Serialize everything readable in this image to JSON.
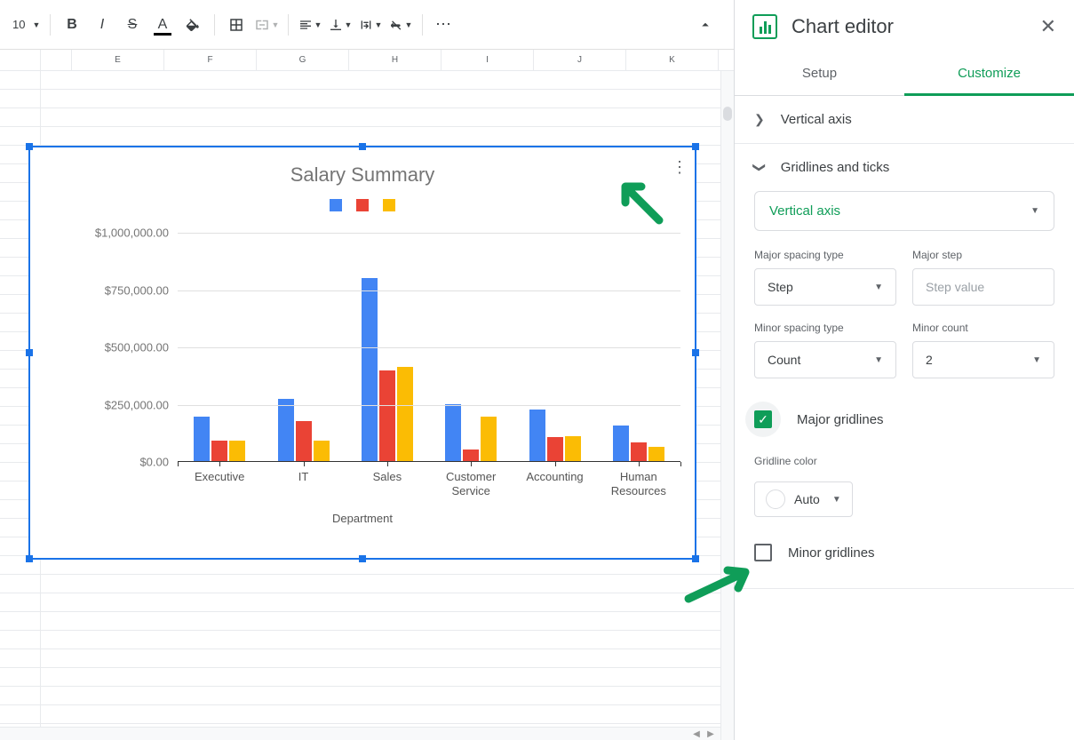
{
  "toolbar": {
    "font_size": "10",
    "buttons": {
      "bold": "B",
      "italic": "I",
      "strike": "S",
      "text_color": "A",
      "more": "⋯"
    }
  },
  "columns": [
    "E",
    "F",
    "G",
    "H",
    "I",
    "J",
    "K"
  ],
  "chart": {
    "type": "bar",
    "title": "Salary Summary",
    "series_colors": [
      "#4285f4",
      "#ea4335",
      "#fbbc04"
    ],
    "axis_label": "Department",
    "categories": [
      "Executive",
      "IT",
      "Sales",
      "Customer\nService",
      "Accounting",
      "Human\nResources"
    ],
    "values": [
      [
        195000,
        90000,
        90000
      ],
      [
        270000,
        175000,
        90000
      ],
      [
        800000,
        395000,
        410000
      ],
      [
        250000,
        52000,
        195000
      ],
      [
        225000,
        105000,
        110000
      ],
      [
        155000,
        80000,
        62000
      ]
    ],
    "ylim": [
      0,
      1000000
    ],
    "ytick_step": 250000,
    "ytick_labels": [
      "$0.00",
      "$250,000.00",
      "$500,000.00",
      "$750,000.00",
      "$1,000,000.00"
    ],
    "title_color": "#757575",
    "grid_color": "#e0e0e0",
    "background_color": "#ffffff"
  },
  "panel": {
    "title": "Chart editor",
    "tabs": {
      "setup": "Setup",
      "customize": "Customize"
    },
    "active_tab": "customize",
    "section_vertical_axis": "Vertical axis",
    "section_gridlines": "Gridlines and ticks",
    "axis_dropdown": "Vertical axis",
    "major_spacing_label": "Major spacing type",
    "major_spacing_value": "Step",
    "major_step_label": "Major step",
    "major_step_placeholder": "Step value",
    "minor_spacing_label": "Minor spacing type",
    "minor_spacing_value": "Count",
    "minor_count_label": "Minor count",
    "minor_count_value": "2",
    "major_gridlines_label": "Major gridlines",
    "major_gridlines_checked": true,
    "gridline_color_label": "Gridline color",
    "gridline_color_value": "Auto",
    "minor_gridlines_label": "Minor gridlines",
    "minor_gridlines_checked": false
  },
  "annotation": {
    "arrow_color": "#0f9d58"
  }
}
